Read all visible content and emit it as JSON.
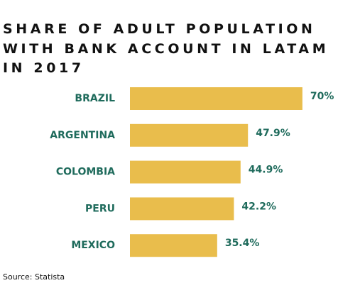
{
  "chart_data": {
    "type": "bar",
    "orientation": "horizontal",
    "title": "SHARE OF ADULT POPULATION WITH BANK ACCOUNT IN LATAM IN 2017",
    "categories": [
      "BRAZIL",
      "ARGENTINA",
      "COLOMBIA",
      "PERU",
      "MEXICO"
    ],
    "values": [
      70,
      47.9,
      44.9,
      42.2,
      35.4
    ],
    "value_labels": [
      "70%",
      "47.9%",
      "44.9%",
      "42.2%",
      "35.4%"
    ],
    "color": "#e9bd4c",
    "source": "Source: Statista"
  }
}
